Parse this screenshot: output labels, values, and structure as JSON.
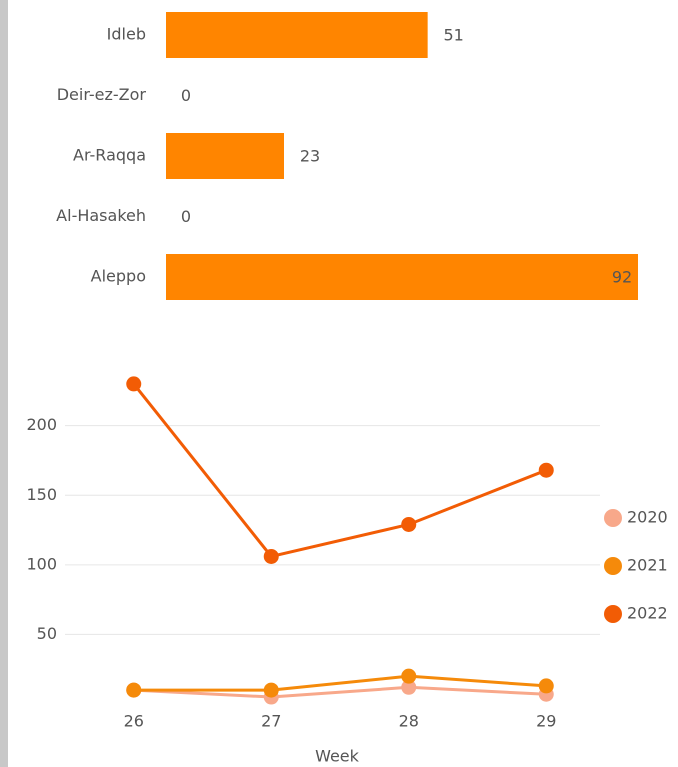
{
  "chart_data": [
    {
      "type": "hbar",
      "categories": [
        "Idleb",
        "Deir-ez-Zor",
        "Ar-Raqqa",
        "Al-Hasakeh",
        "Aleppo"
      ],
      "values": [
        51,
        0,
        23,
        0,
        92
      ],
      "color": "#ff8500"
    },
    {
      "type": "line",
      "x_label": "Week",
      "x": [
        26,
        27,
        28,
        29
      ],
      "xlim": [
        25.5,
        29.5
      ],
      "xticks": [
        26,
        27,
        28,
        29
      ],
      "ylim": [
        0,
        240
      ],
      "yticks": [
        50,
        100,
        150,
        200
      ],
      "grid": true,
      "legend": "right",
      "series": [
        {
          "name": "2020",
          "color": "#f8a88a",
          "values": [
            10,
            5,
            12,
            7
          ]
        },
        {
          "name": "2021",
          "color": "#f58a0a",
          "values": [
            10,
            10,
            20,
            13
          ]
        },
        {
          "name": "2022",
          "color": "#f25c05",
          "values": [
            230,
            106,
            129,
            168
          ]
        }
      ]
    }
  ]
}
